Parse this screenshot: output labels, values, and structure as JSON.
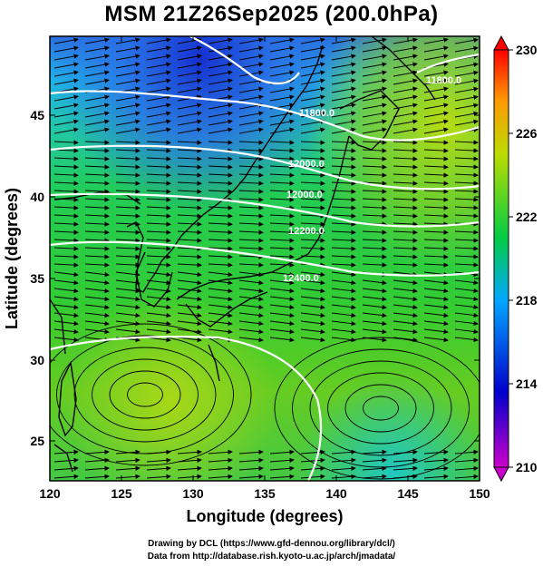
{
  "title": "MSM 21Z26Sep2025 (200.0hPa)",
  "x_axis": {
    "label": "Longitude (degrees)",
    "ticks": [
      "120",
      "125",
      "130",
      "135",
      "140",
      "145",
      "150"
    ],
    "range": [
      120,
      150
    ]
  },
  "y_axis": {
    "label": "Latitude (degrees)",
    "ticks": [
      "25",
      "30",
      "35",
      "40",
      "45"
    ],
    "range": [
      22.4,
      47.6
    ]
  },
  "colorbar": {
    "ticks": [
      "210",
      "214",
      "218",
      "222",
      "226",
      "230"
    ],
    "range": [
      210,
      230
    ],
    "colors": [
      "#cc00cc",
      "#0000cc",
      "#00a8ff",
      "#00cc44",
      "#bcdc00",
      "#ff9900",
      "#ff0000"
    ]
  },
  "contours": {
    "color": "#ffffff",
    "labels": [
      "12000.0",
      "12200.0",
      "12400.0",
      "11800.0"
    ]
  },
  "vectors": {
    "color": "#000000",
    "style": "streamline-arrows"
  },
  "credits": {
    "line1": "Drawing by DCL (https://www.gfd-dennou.org/library/dcl/)",
    "line2": "Data from http://database.rish.kyoto-u.ac.jp/arch/jmadata/"
  }
}
